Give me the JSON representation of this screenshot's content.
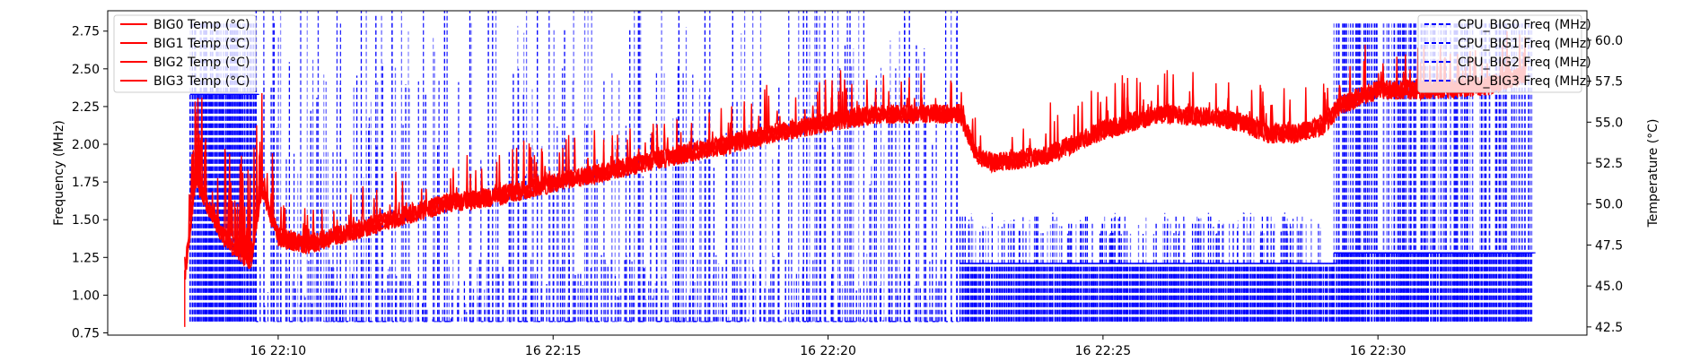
{
  "chart_data": {
    "type": "line",
    "title": "",
    "xlabel": "",
    "ylabel_left": "Frequency (MHz)",
    "ylabel_right": "Temperature (°C)",
    "x_ticks": [
      "16 22:10",
      "16 22:15",
      "16 22:20",
      "16 22:25",
      "16 22:30"
    ],
    "x_tick_minutes": [
      10,
      15,
      20,
      25,
      30
    ],
    "xlim_minutes": [
      6.9,
      33.8
    ],
    "y_left_ticks": [
      "0.75",
      "1.00",
      "1.25",
      "1.50",
      "1.75",
      "2.00",
      "2.25",
      "2.50",
      "2.75"
    ],
    "ylim_left": [
      0.735,
      2.885
    ],
    "y_right_ticks": [
      "42.5",
      "45.0",
      "47.5",
      "50.0",
      "52.5",
      "55.0",
      "57.5",
      "60.0"
    ],
    "ylim_right": [
      42.0,
      61.8
    ],
    "grid": false,
    "legend_left": "top-left",
    "legend_right": "top-right",
    "temp_series": [
      {
        "name": "BIG0 Temp (°C)",
        "color": "#ff0000",
        "style": "solid"
      },
      {
        "name": "BIG1 Temp (°C)",
        "color": "#ff0000",
        "style": "solid"
      },
      {
        "name": "BIG2 Temp (°C)",
        "color": "#ff0000",
        "style": "solid"
      },
      {
        "name": "BIG3 Temp (°C)",
        "color": "#ff0000",
        "style": "solid"
      }
    ],
    "freq_series": [
      {
        "name": "CPU_BIG0 Freq (MHz)",
        "color": "#0000ff",
        "style": "dashed"
      },
      {
        "name": "CPU_BIG1 Freq (MHz)",
        "color": "#0000ff",
        "style": "dashed"
      },
      {
        "name": "CPU_BIG2 Freq (MHz)",
        "color": "#0000ff",
        "style": "dashed"
      },
      {
        "name": "CPU_BIG3 Freq (MHz)",
        "color": "#0000ff",
        "style": "dashed"
      }
    ],
    "temp_trend": {
      "x_minutes": [
        8.3,
        8.5,
        9.0,
        9.5,
        9.7,
        10.0,
        10.5,
        11.0,
        12.0,
        13.0,
        14.0,
        15.0,
        16.0,
        17.0,
        18.0,
        19.0,
        20.0,
        21.0,
        22.0,
        22.4,
        22.7,
        23.0,
        24.0,
        25.0,
        26.0,
        27.0,
        27.5,
        28.0,
        28.5,
        29.0,
        29.3,
        30.0,
        31.0,
        32.0,
        32.7
      ],
      "values": [
        45.5,
        51.5,
        48.0,
        46.5,
        51.0,
        48.0,
        47.5,
        48.0,
        49.0,
        50.0,
        50.5,
        51.3,
        52.0,
        52.8,
        53.5,
        54.3,
        55.0,
        55.5,
        55.5,
        55.5,
        53.0,
        52.5,
        53.0,
        54.5,
        55.5,
        55.3,
        55.0,
        54.3,
        54.3,
        54.8,
        56.0,
        57.0,
        57.0,
        57.2,
        58.0
      ]
    },
    "freq_levels_mhz": {
      "low": 0.825,
      "phase1_high": 2.33,
      "phase2_mid": 1.21,
      "phase3_mid": 1.28,
      "peak": 2.8
    },
    "freq_phases_minutes": [
      {
        "start": 8.4,
        "end": 9.6,
        "level": "phase1_high"
      },
      {
        "start": 9.6,
        "end": 22.4,
        "level": "low"
      },
      {
        "start": 22.4,
        "end": 29.2,
        "level": "phase2_mid"
      },
      {
        "start": 29.2,
        "end": 32.8,
        "level": "phase3_mid"
      }
    ]
  }
}
